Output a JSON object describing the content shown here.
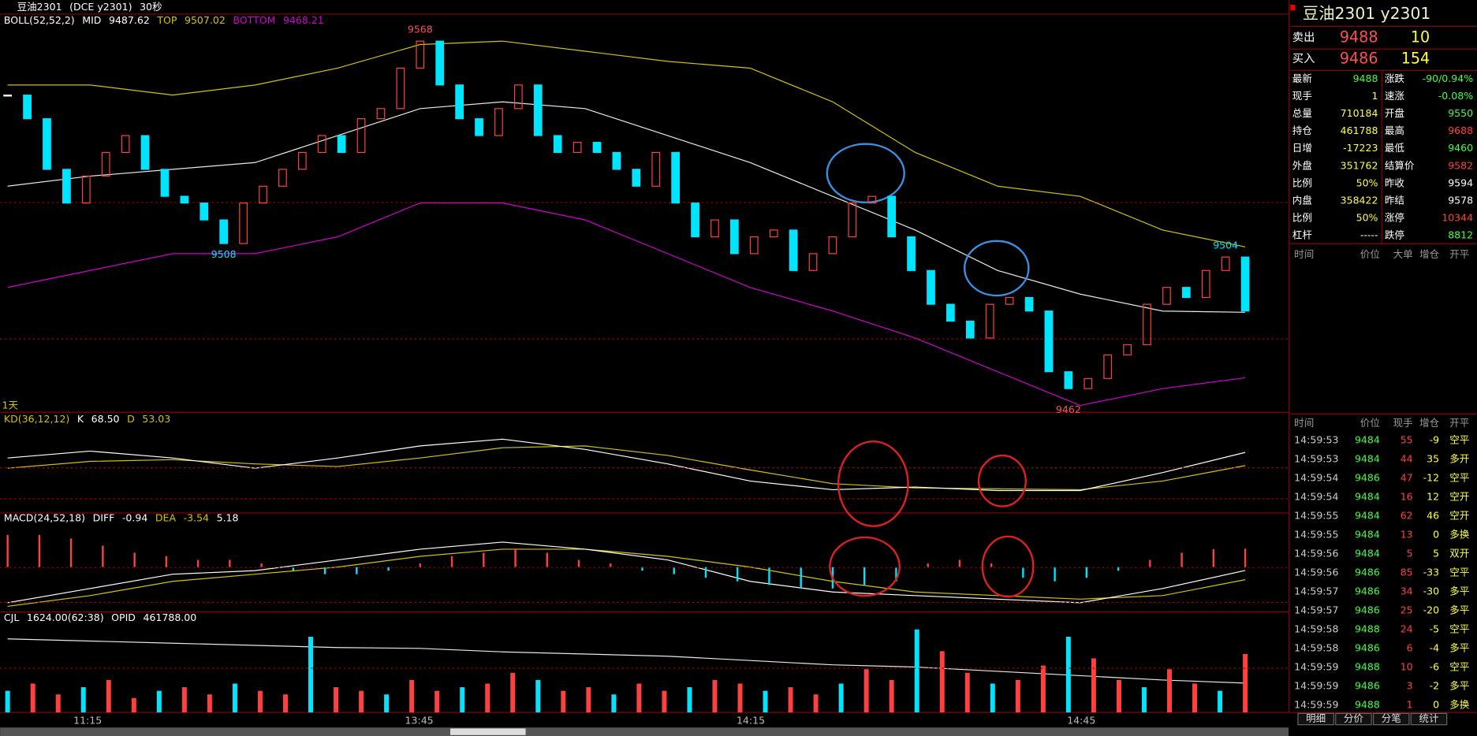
{
  "toolbar": {
    "symbol": "豆油2301",
    "exchange": "(DCE y2301)",
    "period": "30秒"
  },
  "chart_data": [
    {
      "type": "candlestick",
      "indicator": "BOLL(52,52,2)",
      "period_label": "1天",
      "ylim": [
        9458,
        9576
      ],
      "closes": [
        9552,
        9545,
        9530,
        9520,
        9528,
        9535,
        9540,
        9530,
        9522,
        9520,
        9515,
        9508,
        9520,
        9525,
        9530,
        9535,
        9540,
        9535,
        9545,
        9548,
        9560,
        9568,
        9555,
        9545,
        9540,
        9548,
        9555,
        9540,
        9535,
        9538,
        9535,
        9530,
        9525,
        9535,
        9520,
        9510,
        9515,
        9505,
        9510,
        9512,
        9500,
        9505,
        9510,
        9520,
        9522,
        9510,
        9500,
        9490,
        9485,
        9480,
        9490,
        9492,
        9488,
        9470,
        9465,
        9468,
        9475,
        9478,
        9490,
        9495,
        9492,
        9500,
        9504,
        9488
      ],
      "series": [
        {
          "name": "MID",
          "color": "#e8e8e8",
          "values": [
            9525,
            9528,
            9530,
            9532,
            9540,
            9548,
            9550,
            9548,
            9540,
            9532,
            9522,
            9512,
            9500,
            9493,
            9488,
            9487.62
          ]
        },
        {
          "name": "TOP",
          "color": "#d4c400",
          "values": [
            9555,
            9555,
            9552,
            9555,
            9560,
            9567,
            9568,
            9565,
            9562,
            9560,
            9550,
            9535,
            9525,
            9522,
            9512,
            9507.02
          ]
        },
        {
          "name": "BOTTOM",
          "color": "#d000d0",
          "values": [
            9495,
            9500,
            9505,
            9505,
            9510,
            9520,
            9520,
            9515,
            9505,
            9495,
            9488,
            9480,
            9470,
            9460,
            9465,
            9468.21
          ]
        }
      ],
      "annotations": [
        {
          "value": 9568
        },
        {
          "value": 9508
        },
        {
          "value": 9462
        },
        {
          "value": 9504
        }
      ]
    },
    {
      "type": "line",
      "indicator": "KD(36,12,12)",
      "ylim": [
        0,
        100
      ],
      "series": [
        {
          "name": "K",
          "color": "#ffffff",
          "label": "68.50",
          "values": [
            62,
            70,
            62,
            50,
            62,
            76,
            84,
            72,
            55,
            35,
            25,
            28,
            24,
            24,
            45,
            68.5
          ]
        },
        {
          "name": "D",
          "color": "#d4c400",
          "values": [
            50,
            58,
            60,
            55,
            52,
            62,
            74,
            76,
            65,
            48,
            32,
            27,
            26,
            25,
            35,
            53.03
          ]
        }
      ]
    },
    {
      "type": "macd",
      "indicator": "MACD(24,52,18)",
      "ylim": [
        -12,
        12
      ],
      "histogram": [
        9,
        9,
        8,
        6,
        4,
        3,
        2,
        2,
        1,
        -1,
        -2,
        -2,
        -1,
        1,
        3,
        4,
        5,
        4,
        2,
        1,
        -1,
        -2,
        -3,
        -4,
        -5,
        -6,
        -6,
        -5,
        -4,
        1,
        2,
        1,
        -3,
        -4,
        -3,
        -1,
        2,
        4,
        5,
        5.18
      ],
      "series": [
        {
          "name": "DIFF",
          "color": "#ffffff",
          "values": [
            -10,
            -6,
            -2,
            -1,
            2,
            5,
            7,
            5,
            2,
            -4,
            -7,
            -8,
            -9,
            -10,
            -6,
            -0.94
          ]
        },
        {
          "name": "DEA",
          "color": "#d4c400",
          "values": [
            -11,
            -8,
            -4,
            -2,
            0,
            3,
            5,
            5,
            3,
            0,
            -4,
            -7,
            -8,
            -9,
            -8,
            -3.54
          ]
        }
      ]
    },
    {
      "type": "bar",
      "indicator": "CJL",
      "readout": "1624.00(62:38)",
      "ylim": [
        0,
        2400
      ],
      "values": [
        600,
        800,
        500,
        700,
        900,
        400,
        600,
        700,
        500,
        800,
        600,
        500,
        2100,
        700,
        600,
        500,
        900,
        600,
        700,
        800,
        1100,
        900,
        600,
        700,
        500,
        800,
        600,
        700,
        900,
        800,
        600,
        700,
        500,
        800,
        1200,
        900,
        2300,
        1700,
        1100,
        800,
        900,
        1300,
        2100,
        1500,
        900,
        700,
        1200,
        800,
        600,
        1624
      ],
      "opid": {
        "name": "OPID",
        "label": "461788.00",
        "ylim": [
          455000,
          475000
        ],
        "values": [
          472000,
          471500,
          471000,
          470500,
          470000,
          469800,
          469000,
          468500,
          468000,
          467000,
          466000,
          465500,
          464500,
          463500,
          462500,
          461788
        ]
      }
    }
  ],
  "time_axis": [
    "11:15",
    "13:45",
    "14:15",
    "14:45"
  ],
  "quote": {
    "title": "豆油2301  y2301",
    "ask": {
      "label": "卖出",
      "price": 9488,
      "volume": 10
    },
    "bid": {
      "label": "买入",
      "price": 9486,
      "volume": 154
    },
    "stats": [
      [
        "最新",
        9488,
        "涨跌",
        "-90/0.94%"
      ],
      [
        "现手",
        1,
        "速涨",
        "-0.08%"
      ],
      [
        "总量",
        710184,
        "开盘",
        9550
      ],
      [
        "持仓",
        461788,
        "最高",
        9688
      ],
      [
        "日增",
        -17223,
        "最低",
        9460
      ],
      [
        "外盘",
        351762,
        "结算价",
        9582
      ],
      [
        "比例",
        "50%",
        "昨收",
        9594
      ],
      [
        "内盘",
        358422,
        "昨结",
        9578
      ],
      [
        "比例",
        "50%",
        "涨停",
        10344
      ],
      [
        "杠杆",
        "-----",
        "跌停",
        8812
      ]
    ],
    "big_header": [
      "时间",
      "价位",
      "大单",
      "增仓",
      "开平"
    ],
    "tick_header": [
      "时间",
      "价位",
      "现手",
      "增仓",
      "开平"
    ],
    "ticks": [
      [
        "14:59:53",
        9484,
        55,
        -9,
        "空平"
      ],
      [
        "14:59:53",
        9484,
        44,
        35,
        "多开"
      ],
      [
        "14:59:54",
        9486,
        47,
        -12,
        "空平"
      ],
      [
        "14:59:54",
        9484,
        16,
        12,
        "空开"
      ],
      [
        "14:59:55",
        9484,
        62,
        46,
        "空开"
      ],
      [
        "14:59:55",
        9484,
        13,
        0,
        "多换"
      ],
      [
        "14:59:56",
        9484,
        5,
        5,
        "双开"
      ],
      [
        "14:59:56",
        9486,
        85,
        -33,
        "空平"
      ],
      [
        "14:59:57",
        9486,
        34,
        -30,
        "多平"
      ],
      [
        "14:59:57",
        9486,
        25,
        -20,
        "多平"
      ],
      [
        "14:59:58",
        9488,
        24,
        -5,
        "空平"
      ],
      [
        "14:59:58",
        9486,
        6,
        -4,
        "多平"
      ],
      [
        "14:59:59",
        9488,
        10,
        -6,
        "空平"
      ],
      [
        "14:59:59",
        9486,
        3,
        -2,
        "多平"
      ],
      [
        "14:59:59",
        9488,
        1,
        0,
        "多换"
      ]
    ],
    "tabs": [
      "明细",
      "分价",
      "分笔",
      "统计"
    ]
  }
}
